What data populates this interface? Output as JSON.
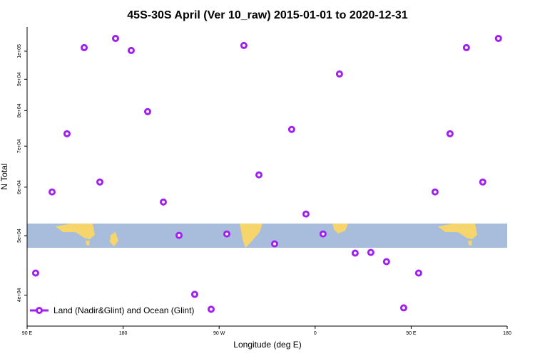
{
  "chart_data": {
    "type": "scatter",
    "title": "45S-30S April (Ver 10_raw)   2015-01-01 to 2020-12-31",
    "x_label": "Longitude (deg E)",
    "y_label": "N Total",
    "series": [
      {
        "name": "Land (Nadir&Glint) and Ocean (Glint)",
        "color": "#a020f0",
        "x": [
          98,
          113.4,
          127.4,
          143.5,
          158.2,
          172.9,
          187.6,
          203,
          217.7,
          232.4,
          247.1,
          262.5,
          277.2,
          293.2,
          307.3,
          322,
          338,
          351.4,
          367.4,
          382.8,
          397.5,
          412.2,
          426.9,
          443,
          457,
          472.4,
          486.4,
          501.8,
          517.1,
          531.8
        ],
        "values": [
          43450,
          58930,
          73340,
          101350,
          61170,
          104920,
          100270,
          79690,
          56750,
          50060,
          40110,
          37920,
          50330,
          102160,
          62830,
          48490,
          74540,
          54240,
          50330,
          91800,
          46830,
          46950,
          45350,
          38120,
          43450,
          58930,
          73340,
          101350,
          61170,
          104920
        ]
      }
    ],
    "xlim": [
      90,
      540
    ],
    "xticks": [
      {
        "value": 90,
        "label": "90 E"
      },
      {
        "value": 180,
        "label": "180"
      },
      {
        "value": 270,
        "label": "90 W"
      },
      {
        "value": 360,
        "label": "0"
      },
      {
        "value": 450,
        "label": "90 E"
      },
      {
        "value": 540,
        "label": "180"
      }
    ],
    "ylim": [
      35600,
      109500
    ],
    "ylog": true,
    "yticks": [
      {
        "value": 40000,
        "label": "4e+04"
      },
      {
        "value": 50000,
        "label": "5e+04"
      },
      {
        "value": 60000,
        "label": "6e+04"
      },
      {
        "value": 70000,
        "label": "7e+04"
      },
      {
        "value": 80000,
        "label": "8e+04"
      },
      {
        "value": 90000,
        "label": "9e+04"
      },
      {
        "value": 100000,
        "label": "1e+05"
      }
    ],
    "legend": "bottom-left"
  }
}
